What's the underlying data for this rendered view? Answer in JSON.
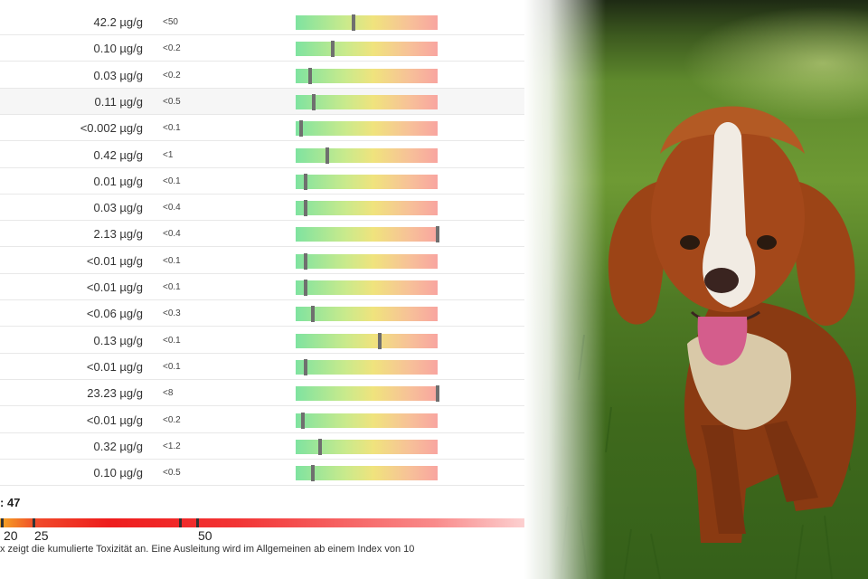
{
  "rows": [
    {
      "value": "42.2 µg/g",
      "limit": "<50",
      "level": 0.41
    },
    {
      "value": "0.10 µg/g",
      "limit": "<0.2",
      "level": 0.26
    },
    {
      "value": "0.03 µg/g",
      "limit": "<0.2",
      "level": 0.1
    },
    {
      "value": "0.11 µg/g",
      "limit": "<0.5",
      "level": 0.13
    },
    {
      "value": "<0.002 µg/g",
      "limit": "<0.1",
      "level": 0.04
    },
    {
      "value": "0.42 µg/g",
      "limit": "<1",
      "level": 0.22
    },
    {
      "value": "0.01 µg/g",
      "limit": "<0.1",
      "level": 0.07
    },
    {
      "value": "0.03 µg/g",
      "limit": "<0.4",
      "level": 0.07
    },
    {
      "value": "2.13 µg/g",
      "limit": "<0.4",
      "level": 1.0
    },
    {
      "value": "<0.01 µg/g",
      "limit": "<0.1",
      "level": 0.07
    },
    {
      "value": "<0.01 µg/g",
      "limit": "<0.1",
      "level": 0.07
    },
    {
      "value": "<0.06 µg/g",
      "limit": "<0.3",
      "level": 0.12
    },
    {
      "value": "0.13 µg/g",
      "limit": "<0.1",
      "level": 0.59
    },
    {
      "value": "<0.01 µg/g",
      "limit": "<0.1",
      "level": 0.07
    },
    {
      "value": "23.23 µg/g",
      "limit": "<8",
      "level": 1.0
    },
    {
      "value": "<0.01 µg/g",
      "limit": "<0.2",
      "level": 0.05
    },
    {
      "value": "0.32 µg/g",
      "limit": "<1.2",
      "level": 0.17
    },
    {
      "value": "0.10 µg/g",
      "limit": "<0.5",
      "level": 0.12
    }
  ],
  "highlighted_row": 3,
  "index": {
    "label": ": 47",
    "value": 47,
    "ticks": [
      "20",
      "25",
      "50"
    ],
    "footnote": "x zeigt die kumulierte Toxizität an. Eine Ausleitung wird im Allgemeinen ab einem Index von 10"
  },
  "colors": {
    "bar_low": "#7fe3a0",
    "bar_mid": "#f0e37d",
    "bar_high": "#f8a5a0",
    "index_bar": "#ee1d1d"
  },
  "photo": {
    "subject": "cavalier-spaniel-dog-on-grass"
  }
}
